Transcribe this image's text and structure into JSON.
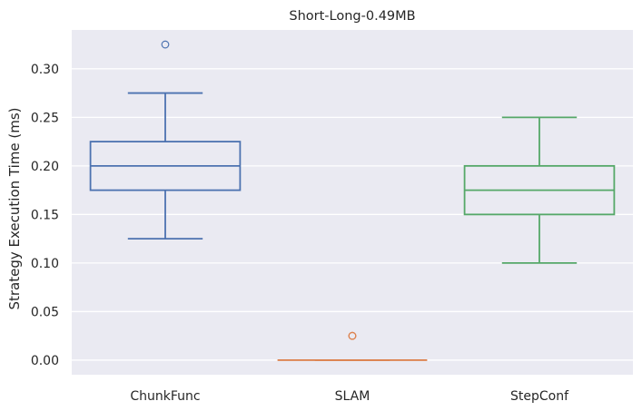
{
  "chart_data": {
    "type": "box",
    "title": "Short-Long-0.49MB",
    "xlabel": "",
    "ylabel": "Strategy Execution Time (ms)",
    "ylim": [
      -0.015,
      0.34
    ],
    "yticks": [
      0.0,
      0.05,
      0.1,
      0.15,
      0.2,
      0.25,
      0.3
    ],
    "ytick_labels": [
      "0.00",
      "0.05",
      "0.10",
      "0.15",
      "0.20",
      "0.25",
      "0.30"
    ],
    "categories": [
      "ChunkFunc",
      "SLAM",
      "StepConf"
    ],
    "grid": true,
    "background": "#eaeaf2",
    "series": [
      {
        "category": "ChunkFunc",
        "color": "#4c72b0",
        "whisker_low": 0.125,
        "q1": 0.175,
        "median": 0.2,
        "q3": 0.225,
        "whisker_high": 0.275,
        "outliers": [
          0.325
        ]
      },
      {
        "category": "SLAM",
        "color": "#dd8452",
        "whisker_low": 0.0,
        "q1": 0.0,
        "median": 0.0,
        "q3": 0.0,
        "whisker_high": 0.0,
        "outliers": [
          0.025,
          0.025,
          0.025
        ]
      },
      {
        "category": "StepConf",
        "color": "#55a868",
        "whisker_low": 0.1,
        "q1": 0.15,
        "median": 0.175,
        "q3": 0.2,
        "whisker_high": 0.25,
        "outliers": []
      }
    ]
  }
}
